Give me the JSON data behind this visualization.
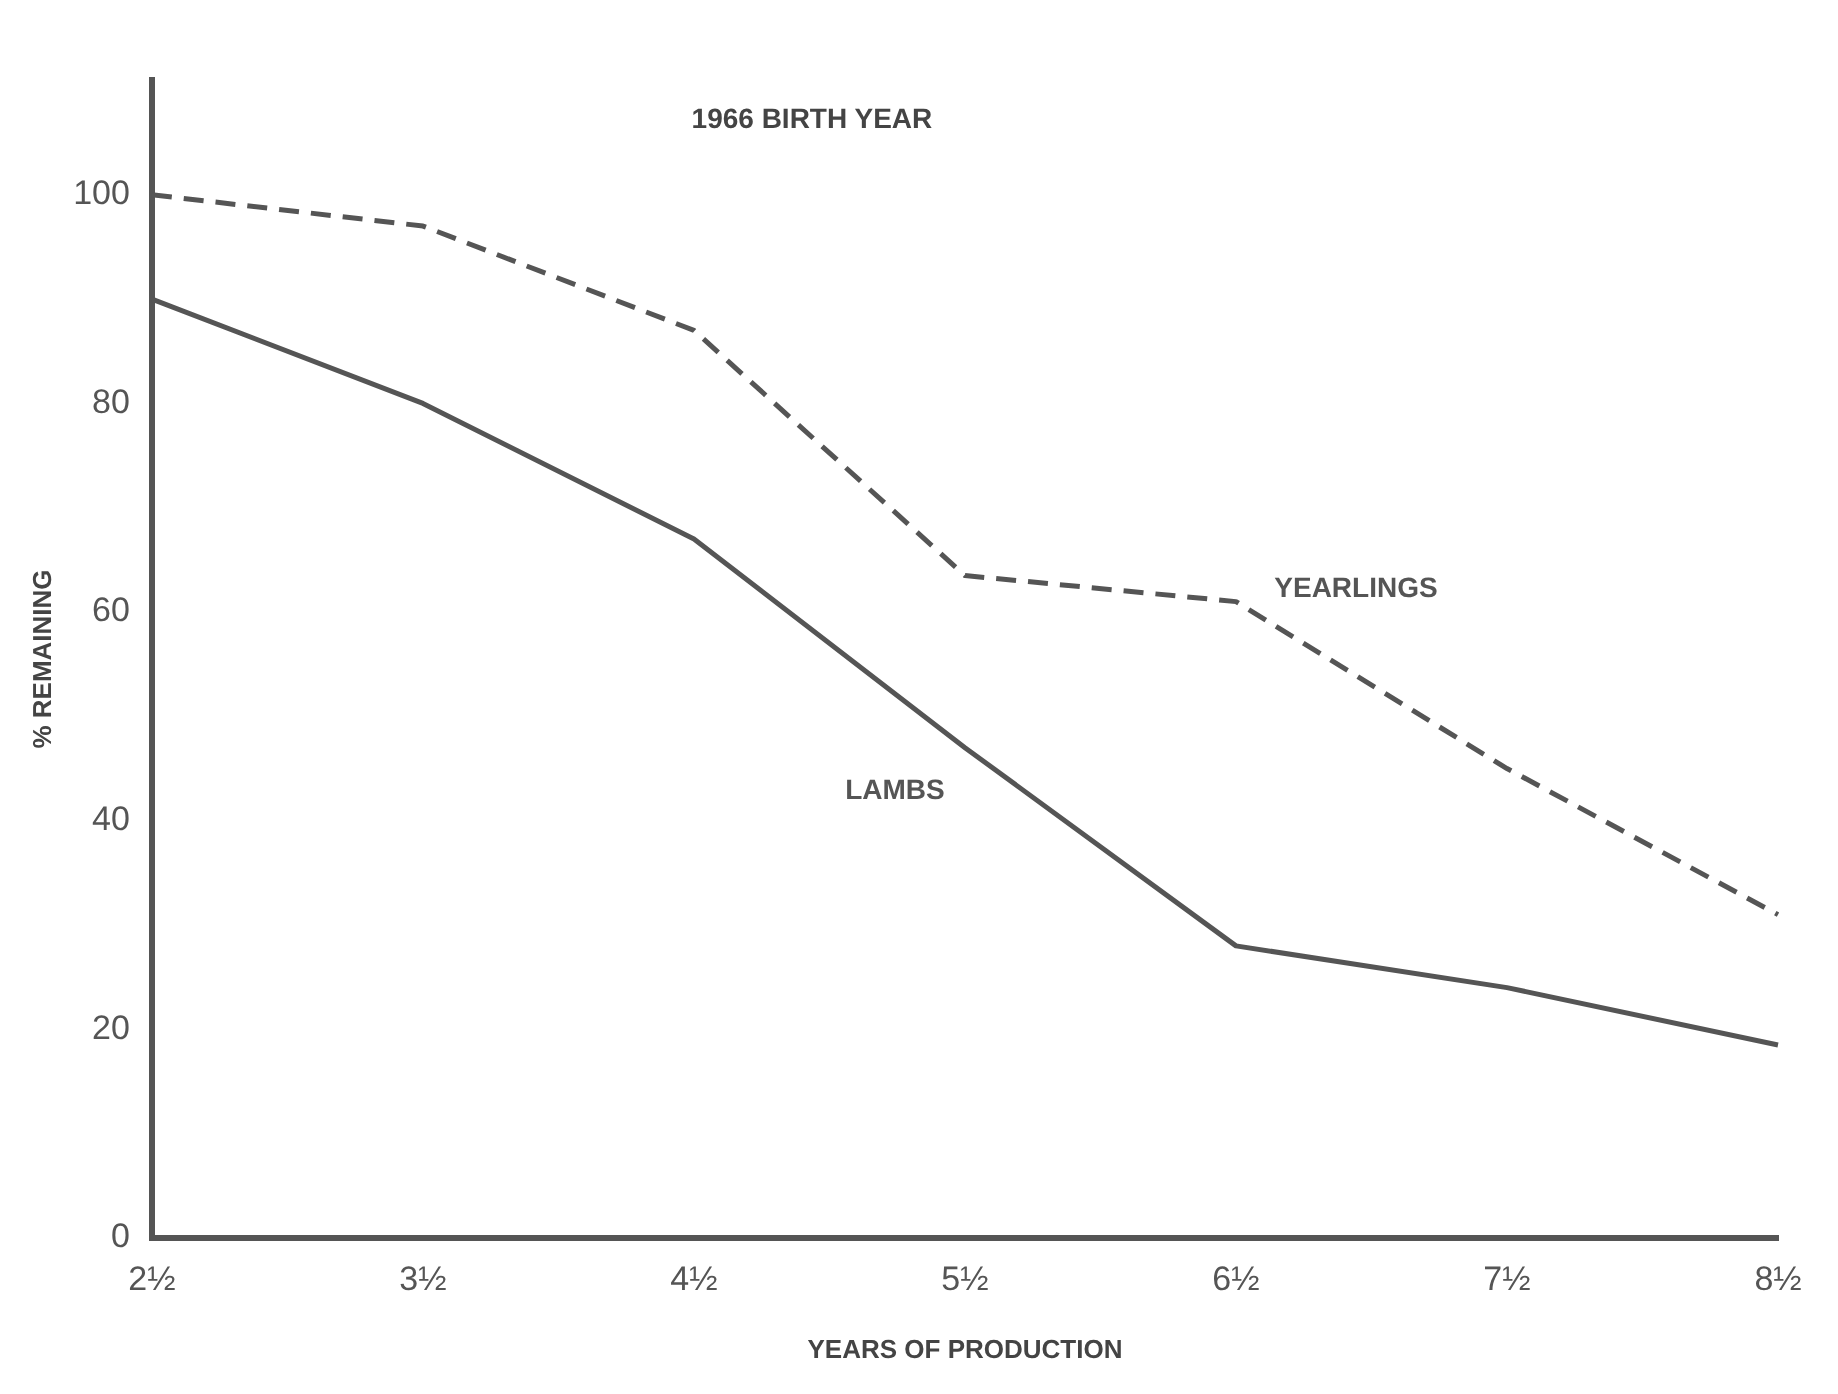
{
  "chart_data": {
    "type": "line",
    "title": "1966 BIRTH YEAR",
    "xlabel": "YEARS OF PRODUCTION",
    "ylabel": "% REMAINING",
    "categories": [
      "2½",
      "3½",
      "4½",
      "5½",
      "6½",
      "7½",
      "8½"
    ],
    "series": [
      {
        "name": "YEARLINGS",
        "color": "#555555",
        "line_style": "dashed",
        "values": [
          100,
          97,
          87,
          63.5,
          61,
          45,
          31
        ]
      },
      {
        "name": "LAMBS",
        "color": "#555555",
        "line_style": "solid",
        "values": [
          90,
          80,
          67,
          47,
          28,
          24,
          18.5
        ]
      }
    ],
    "ylim": [
      0,
      111
    ],
    "yticks": [
      0,
      20,
      40,
      60,
      80,
      100
    ],
    "grid": false,
    "legend": false,
    "marker": "none"
  }
}
